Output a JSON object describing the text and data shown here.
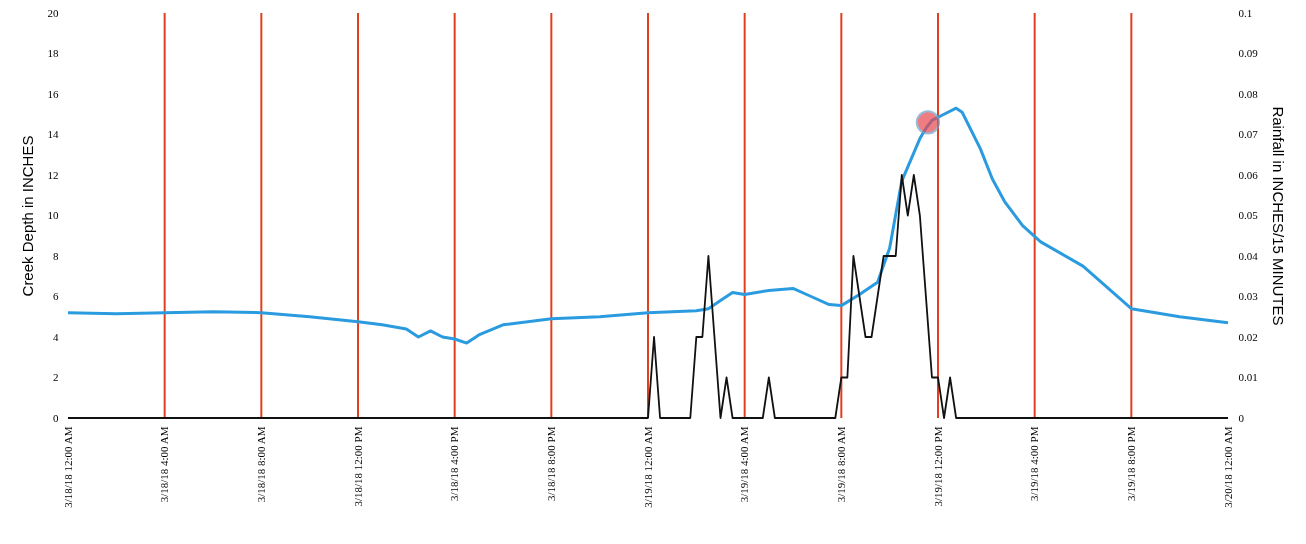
{
  "chart_data": {
    "type": "line",
    "ylabel": "Creek Depth in INCHES",
    "y2label": "Rainfall in INCHES/15 MINUTES",
    "grid": false,
    "xlim": [
      "--03-18T00:00",
      "--03-20T00:00"
    ],
    "xticks": [
      {
        "value": "--03-18T00:00",
        "label": "3/18/18 12:00 AM"
      },
      {
        "value": "--03-18T04:00",
        "label": "3/18/18 4:00 AM"
      },
      {
        "value": "--03-18T08:00",
        "label": "3/18/18 8:00 AM"
      },
      {
        "value": "--03-18T12:00",
        "label": "3/18/18 12:00 PM"
      },
      {
        "value": "--03-18T16:00",
        "label": "3/18/18 4:00 PM"
      },
      {
        "value": "--03-18T20:00",
        "label": "3/18/18 8:00 PM"
      },
      {
        "value": "--03-19T00:00",
        "label": "3/19/18 12:00 AM"
      },
      {
        "value": "--03-19T04:00",
        "label": "3/19/18 4:00 AM"
      },
      {
        "value": "--03-19T08:00",
        "label": "3/19/18 8:00 AM"
      },
      {
        "value": "--03-19T12:00",
        "label": "3/19/18 12:00 PM"
      },
      {
        "value": "--03-19T16:00",
        "label": "3/19/18 4:00 PM"
      },
      {
        "value": "--03-19T20:00",
        "label": "3/19/18 8:00 PM"
      },
      {
        "value": "--03-20T00:00",
        "label": "3/20/18 12:00 AM"
      }
    ],
    "ylim": [
      0,
      20
    ],
    "yticks": [
      0,
      2,
      4,
      6,
      8,
      10,
      12,
      14,
      16,
      18,
      20
    ],
    "y2lim": [
      0,
      0.1
    ],
    "y2ticks": [
      0,
      0.01,
      0.02,
      0.03,
      0.04,
      0.05,
      0.06,
      0.07,
      0.08,
      0.09,
      0.1
    ],
    "ref_lines": [
      {
        "axis": "x",
        "value": "--03-18T04:00",
        "color": "#e0401e"
      },
      {
        "axis": "x",
        "value": "--03-18T08:00",
        "color": "#e0401e"
      },
      {
        "axis": "x",
        "value": "--03-18T12:00",
        "color": "#e0401e"
      },
      {
        "axis": "x",
        "value": "--03-18T16:00",
        "color": "#e0401e"
      },
      {
        "axis": "x",
        "value": "--03-18T20:00",
        "color": "#e0401e"
      },
      {
        "axis": "x",
        "value": "--03-19T00:00",
        "color": "#e0401e"
      },
      {
        "axis": "x",
        "value": "--03-19T04:00",
        "color": "#e0401e"
      },
      {
        "axis": "x",
        "value": "--03-19T08:00",
        "color": "#e0401e"
      },
      {
        "axis": "x",
        "value": "--03-19T12:00",
        "color": "#e0401e"
      },
      {
        "axis": "x",
        "value": "--03-19T16:00",
        "color": "#e0401e"
      },
      {
        "axis": "x",
        "value": "--03-19T20:00",
        "color": "#e0401e"
      }
    ],
    "series": [
      {
        "type": "line",
        "color": "#2b9be0",
        "x": [
          "--03-18T00:00",
          "--03-18T02:00",
          "--03-18T04:00",
          "--03-18T06:00",
          "--03-18T08:00",
          "--03-18T10:00",
          "--03-18T12:00",
          "--03-18T13:00",
          "--03-18T14:00",
          "--03-18T14:30",
          "--03-18T15:00",
          "--03-18T15:30",
          "--03-18T16:00",
          "--03-18T16:30",
          "--03-18T17:00",
          "--03-18T18:00",
          "--03-18T20:00",
          "--03-18T22:00",
          "--03-19T00:00",
          "--03-19T02:00",
          "--03-19T02:30",
          "--03-19T03:00",
          "--03-19T03:30",
          "--03-19T04:00",
          "--03-19T05:00",
          "--03-19T06:00",
          "--03-19T06:45",
          "--03-19T07:30",
          "--03-19T08:00",
          "--03-19T08:45",
          "--03-19T09:30",
          "--03-19T10:00",
          "--03-19T10:30",
          "--03-19T11:15",
          "--03-19T11:30",
          "--03-19T11:45",
          "--03-19T12:15",
          "--03-19T12:45",
          "--03-19T13:00",
          "--03-19T13:45",
          "--03-19T14:15",
          "--03-19T14:45",
          "--03-19T15:30",
          "--03-19T16:15",
          "--03-19T18:00",
          "--03-19T20:00",
          "--03-19T22:00",
          "--03-20T00:00"
        ],
        "values": [
          5.2,
          5.15,
          5.2,
          5.25,
          5.2,
          5.0,
          4.75,
          4.6,
          4.4,
          4.0,
          4.3,
          4.0,
          3.9,
          3.7,
          4.1,
          4.6,
          4.9,
          5.0,
          5.2,
          5.3,
          5.4,
          5.8,
          6.2,
          6.1,
          6.3,
          6.4,
          6.0,
          5.6,
          5.55,
          6.1,
          6.7,
          8.4,
          11.7,
          13.8,
          14.3,
          14.7,
          15.0,
          15.3,
          15.1,
          13.3,
          11.8,
          10.7,
          9.5,
          8.7,
          7.5,
          5.4,
          5.0,
          4.7
        ]
      },
      {
        "type": "line",
        "axis": "y2",
        "color": "#111111",
        "x": [
          "--03-18T00:00",
          "--03-19T00:00",
          "--03-19T00:15",
          "--03-19T00:30",
          "--03-19T01:45",
          "--03-19T02:00",
          "--03-19T02:15",
          "--03-19T02:30",
          "--03-19T03:00",
          "--03-19T03:15",
          "--03-19T03:30",
          "--03-19T04:45",
          "--03-19T05:00",
          "--03-19T05:15",
          "--03-19T07:45",
          "--03-19T08:00",
          "--03-19T08:15",
          "--03-19T08:30",
          "--03-19T09:00",
          "--03-19T09:15",
          "--03-19T09:45",
          "--03-19T10:15",
          "--03-19T10:30",
          "--03-19T10:45",
          "--03-19T11:00",
          "--03-19T11:15",
          "--03-19T11:45",
          "--03-19T12:00",
          "--03-19T12:15",
          "--03-19T12:30",
          "--03-19T12:45",
          "--03-20T00:00"
        ],
        "values": [
          0,
          0,
          0.02,
          0,
          0,
          0.02,
          0.02,
          0.04,
          0,
          0.01,
          0,
          0,
          0.01,
          0,
          0,
          0.01,
          0.01,
          0.04,
          0.02,
          0.02,
          0.04,
          0.04,
          0.06,
          0.05,
          0.06,
          0.05,
          0.01,
          0.01,
          0,
          0.01,
          0,
          0
        ]
      },
      {
        "type": "scatter",
        "marker": "circle",
        "color": "#e8474f",
        "x": [
          "--03-19T11:35"
        ],
        "values": [
          14.6
        ]
      }
    ]
  }
}
